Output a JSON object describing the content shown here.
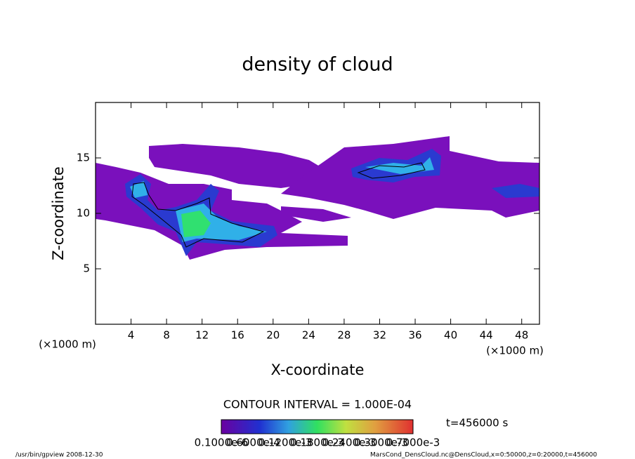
{
  "chart_data": {
    "type": "contour",
    "title": "density of cloud",
    "xlabel": "X-coordinate",
    "ylabel": "Z-coordinate",
    "xunit": "(×1000 m)",
    "xlim": [
      0,
      50
    ],
    "xticks": [
      4,
      8,
      12,
      16,
      20,
      24,
      28,
      32,
      36,
      40,
      44,
      48
    ],
    "ylim": [
      0,
      20
    ],
    "yticks": [
      5,
      10,
      15
    ],
    "contour_interval": "CONTOUR INTERVAL = 1.000E-04",
    "time_label": "t=456000 s",
    "colorbar_labels": [
      "0.1000e-6",
      "0.6000e-4",
      "0.1200e-3",
      "0.1800e-3",
      "0.2400e-3",
      "0.3000e-3",
      "0.7000e-3"
    ],
    "footer_left": "/usr/bin/gpview   2008-12-30",
    "footer_right": "MarsCond_DensCloud.nc@DensCloud,x=0:50000,z=0:20000,t=456000"
  }
}
